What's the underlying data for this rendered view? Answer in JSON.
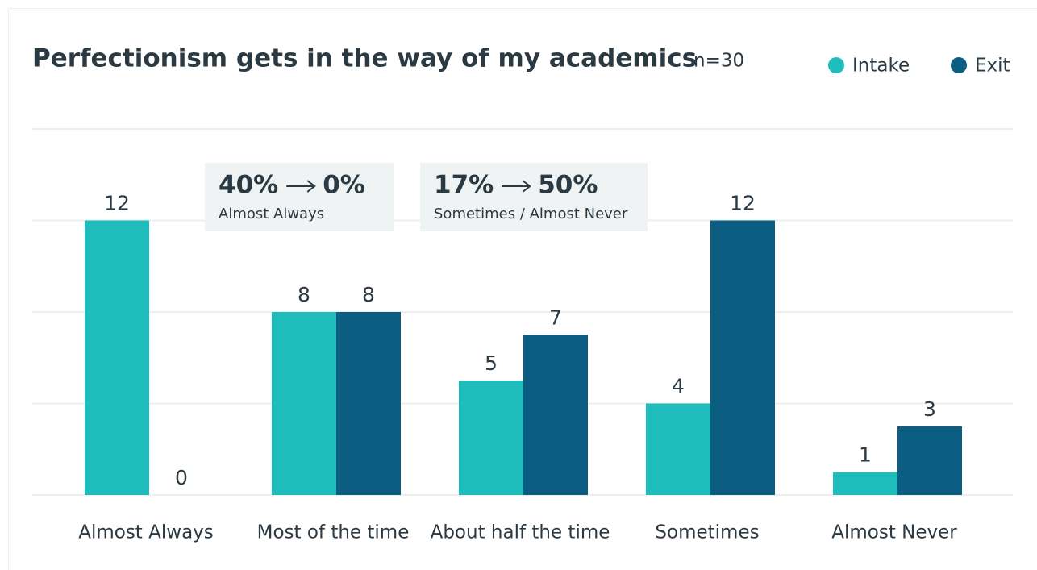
{
  "chart_data": {
    "type": "bar",
    "title": "Perfectionism gets in the way of my academics",
    "subtitle": "n=30",
    "categories": [
      "Almost Always",
      "Most of the time",
      "About half the time",
      "Sometimes",
      "Almost Never"
    ],
    "series": [
      {
        "name": "Intake",
        "color": "#1fbcbc",
        "values": [
          12,
          8,
          5,
          4,
          1
        ]
      },
      {
        "name": "Exit",
        "color": "#0b5e82",
        "values": [
          0,
          8,
          7,
          12,
          3
        ]
      }
    ],
    "ylim": [
      0,
      16
    ],
    "yticks": [
      0,
      4,
      8,
      12,
      16
    ],
    "grid": true,
    "legend": "top-right",
    "annotations": [
      {
        "from": "40%",
        "to": "0%",
        "label": "Almost Always"
      },
      {
        "from": "17%",
        "to": "50%",
        "label": "Sometimes / Almost Never"
      }
    ]
  }
}
